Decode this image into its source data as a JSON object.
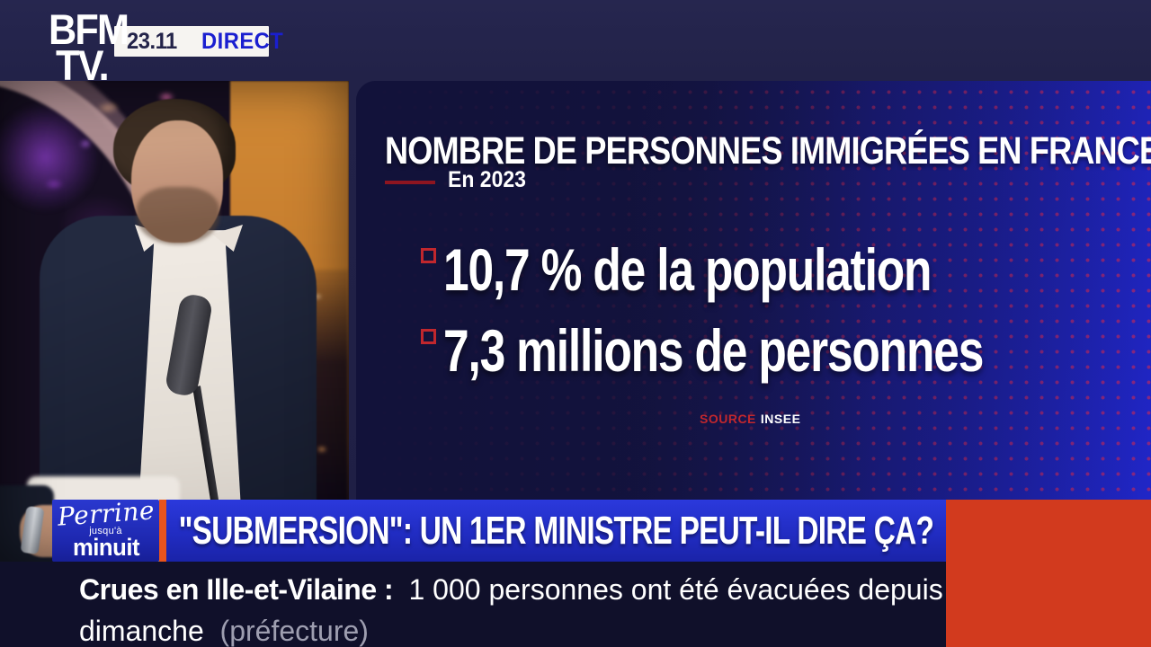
{
  "header": {
    "channel_top": "BFM",
    "channel_bottom": "TV.",
    "time": "23.11",
    "live_label": "DIRECT"
  },
  "panel": {
    "title": "NOMBRE DE PERSONNES IMMIGRÉES EN FRANCE",
    "period": "En 2023",
    "stats": [
      "10,7 % de la population",
      "7,3 millions de personnes"
    ],
    "source_label": "SOURCE",
    "source_name": "INSEE"
  },
  "show": {
    "name_script": "Perrine",
    "name_small": "jusqu'à",
    "name_bold": "minuit"
  },
  "banner": {
    "headline": "\"SUBMERSION\": UN 1ER MINISTRE PEUT-IL DIRE ÇA?"
  },
  "ticker": {
    "lead": "Crues en Ille-et-Vilaine :",
    "line1_rest": "1 000 personnes ont été évacuées depuis",
    "line2": "dimanche",
    "attribution": "(préfecture)"
  },
  "colors": {
    "accent_orange": "#d23a1e",
    "divider_orange": "#e8541d",
    "banner_blue": "#212cc2",
    "direct_blue": "#1a1fd0",
    "bullet_red": "#c1272d",
    "panel_navy": "#12123a",
    "panel_blue": "#2026c8",
    "ticker_navy": "#10102a"
  }
}
